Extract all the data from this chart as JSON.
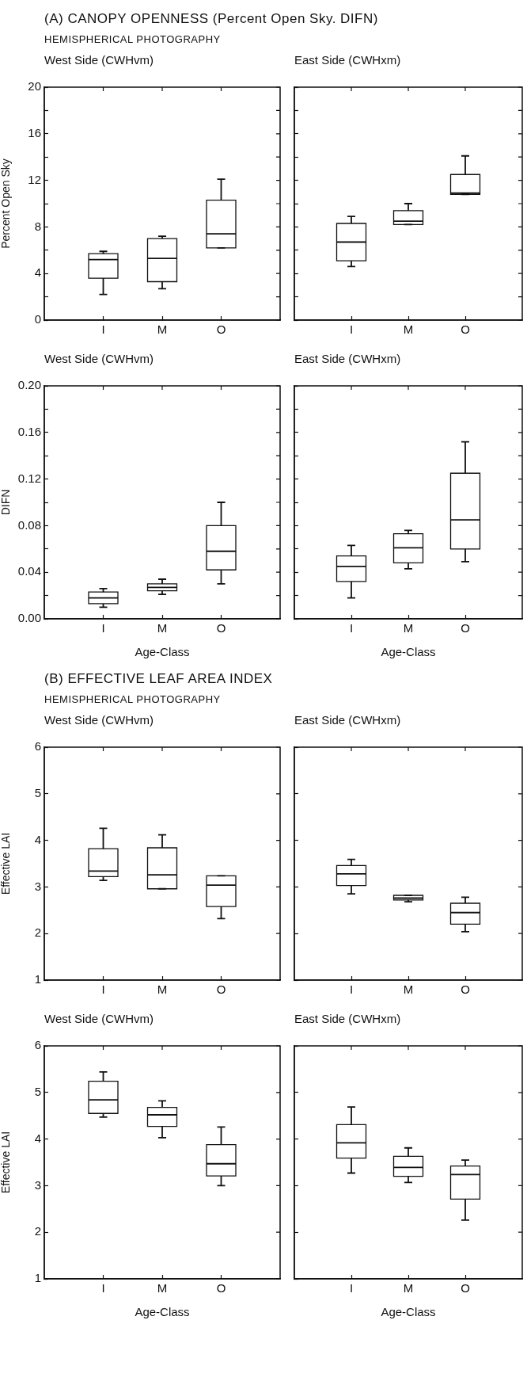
{
  "chart_data": [
    {
      "type": "box",
      "annotations": [
        "(A) CANOPY OPENNESS (Percent Open Sky. DIFN)",
        "HEMISPHERICAL PHOTOGRAPHY"
      ],
      "title": "West Side (CWHvm)",
      "ylabel": "Percent Open Sky",
      "categories": [
        "I",
        "M",
        "O"
      ],
      "ylim": [
        0,
        20
      ],
      "yticks": [
        0,
        {
          "value": 2,
          "label": null
        },
        4,
        {
          "value": 6,
          "label": null
        },
        8,
        {
          "value": 10,
          "label": null
        },
        12,
        {
          "value": 14,
          "label": null
        },
        16,
        {
          "value": 18,
          "label": null
        },
        20
      ],
      "boxes": [
        {
          "low": 2.2,
          "q1": 3.6,
          "median": 5.2,
          "q3": 5.7,
          "high": 5.9
        },
        {
          "low": 2.7,
          "q1": 3.3,
          "median": 5.3,
          "q3": 7.0,
          "high": 7.2
        },
        {
          "low": 6.2,
          "q1": 6.2,
          "median": 7.4,
          "q3": 10.3,
          "high": 12.1
        }
      ]
    },
    {
      "type": "box",
      "title": "East Side (CWHxm)",
      "categories": [
        "I",
        "M",
        "O"
      ],
      "tick_labels": "x",
      "ylim": [
        0,
        20
      ],
      "yticks": [
        0,
        {
          "value": 2,
          "label": null
        },
        4,
        {
          "value": 6,
          "label": null
        },
        8,
        {
          "value": 10,
          "label": null
        },
        12,
        {
          "value": 14,
          "label": null
        },
        16,
        {
          "value": 18,
          "label": null
        },
        20
      ],
      "boxes": [
        {
          "low": 4.6,
          "q1": 5.1,
          "median": 6.7,
          "q3": 8.3,
          "high": 8.9
        },
        {
          "low": 8.2,
          "q1": 8.2,
          "median": 8.5,
          "q3": 9.4,
          "high": 10.0
        },
        {
          "low": 10.8,
          "q1": 10.8,
          "median": 10.9,
          "q3": 12.5,
          "high": 14.1
        }
      ]
    },
    {
      "type": "box",
      "title": "West Side (CWHvm)",
      "ylabel": "DIFN",
      "xlabel": "Age-Class",
      "categories": [
        "I",
        "M",
        "O"
      ],
      "ylim": [
        0,
        0.2
      ],
      "yticks": [
        {
          "value": 0,
          "label": "0.00"
        },
        {
          "value": 0.02,
          "label": null
        },
        0.04,
        {
          "value": 0.06,
          "label": null
        },
        0.08,
        {
          "value": 0.1,
          "label": null
        },
        0.12,
        {
          "value": 0.14,
          "label": null
        },
        0.16,
        {
          "value": 0.18,
          "label": null
        },
        {
          "value": 0.2,
          "label": "0.20"
        }
      ],
      "boxes": [
        {
          "low": 0.01,
          "q1": 0.013,
          "median": 0.018,
          "q3": 0.023,
          "high": 0.026
        },
        {
          "low": 0.021,
          "q1": 0.024,
          "median": 0.027,
          "q3": 0.03,
          "high": 0.034
        },
        {
          "low": 0.03,
          "q1": 0.042,
          "median": 0.058,
          "q3": 0.08,
          "high": 0.1
        }
      ]
    },
    {
      "type": "box",
      "title": "East Side (CWHxm)",
      "xlabel": "Age-Class",
      "categories": [
        "I",
        "M",
        "O"
      ],
      "tick_labels": "x",
      "ylim": [
        0,
        0.2
      ],
      "yticks": [
        0,
        {
          "value": 0.02,
          "label": null
        },
        0.04,
        {
          "value": 0.06,
          "label": null
        },
        0.08,
        {
          "value": 0.1,
          "label": null
        },
        0.12,
        {
          "value": 0.14,
          "label": null
        },
        0.16,
        {
          "value": 0.18,
          "label": null
        },
        0.2
      ],
      "boxes": [
        {
          "low": 0.018,
          "q1": 0.032,
          "median": 0.045,
          "q3": 0.054,
          "high": 0.063
        },
        {
          "low": 0.043,
          "q1": 0.048,
          "median": 0.061,
          "q3": 0.073,
          "high": 0.076
        },
        {
          "low": 0.049,
          "q1": 0.06,
          "median": 0.085,
          "q3": 0.125,
          "high": 0.152
        }
      ]
    },
    {
      "type": "box",
      "annotations": [
        "(B) EFFECTIVE LEAF AREA INDEX",
        "HEMISPHERICAL PHOTOGRAPHY"
      ],
      "title": "West Side (CWHvm)",
      "ylabel": "Effective LAI",
      "categories": [
        "I",
        "M",
        "O"
      ],
      "ylim": [
        1,
        6
      ],
      "yticks": [
        1,
        2,
        3,
        4,
        5,
        6
      ],
      "boxes": [
        {
          "low": 3.14,
          "q1": 3.22,
          "median": 3.34,
          "q3": 3.82,
          "high": 4.26
        },
        {
          "low": 2.96,
          "q1": 2.96,
          "median": 3.26,
          "q3": 3.84,
          "high": 4.12
        },
        {
          "low": 2.32,
          "q1": 2.58,
          "median": 3.04,
          "q3": 3.24,
          "high": 3.24
        }
      ]
    },
    {
      "type": "box",
      "title": "East Side (CWHxm)",
      "categories": [
        "I",
        "M",
        "O"
      ],
      "tick_labels": "x",
      "ylim": [
        1,
        6
      ],
      "yticks": [
        1,
        2,
        3,
        4,
        5,
        6
      ],
      "boxes": [
        {
          "low": 2.85,
          "q1": 3.03,
          "median": 3.28,
          "q3": 3.46,
          "high": 3.59
        },
        {
          "low": 2.68,
          "q1": 2.72,
          "median": 2.76,
          "q3": 2.82,
          "high": 2.82
        },
        {
          "low": 2.04,
          "q1": 2.2,
          "median": 2.45,
          "q3": 2.65,
          "high": 2.78
        }
      ]
    },
    {
      "type": "box",
      "title": "West Side (CWHvm)",
      "ylabel": "Effective LAI",
      "xlabel": "Age-Class",
      "categories": [
        "I",
        "M",
        "O"
      ],
      "ylim": [
        1,
        6
      ],
      "yticks": [
        1,
        2,
        3,
        4,
        5,
        6
      ],
      "boxes": [
        {
          "low": 4.47,
          "q1": 4.55,
          "median": 4.84,
          "q3": 5.24,
          "high": 5.44
        },
        {
          "low": 4.03,
          "q1": 4.27,
          "median": 4.52,
          "q3": 4.68,
          "high": 4.82
        },
        {
          "low": 3.0,
          "q1": 3.21,
          "median": 3.47,
          "q3": 3.88,
          "high": 4.26
        }
      ]
    },
    {
      "type": "box",
      "title": "East Side (CWHxm)",
      "xlabel": "Age-Class",
      "categories": [
        "I",
        "M",
        "O"
      ],
      "tick_labels": "x",
      "ylim": [
        1,
        6
      ],
      "yticks": [
        1,
        2,
        3,
        4,
        5,
        6
      ],
      "boxes": [
        {
          "low": 3.27,
          "q1": 3.59,
          "median": 3.92,
          "q3": 4.31,
          "high": 4.69
        },
        {
          "low": 3.07,
          "q1": 3.2,
          "median": 3.39,
          "q3": 3.63,
          "high": 3.81
        },
        {
          "low": 2.26,
          "q1": 2.71,
          "median": 3.24,
          "q3": 3.42,
          "high": 3.55
        }
      ]
    }
  ]
}
